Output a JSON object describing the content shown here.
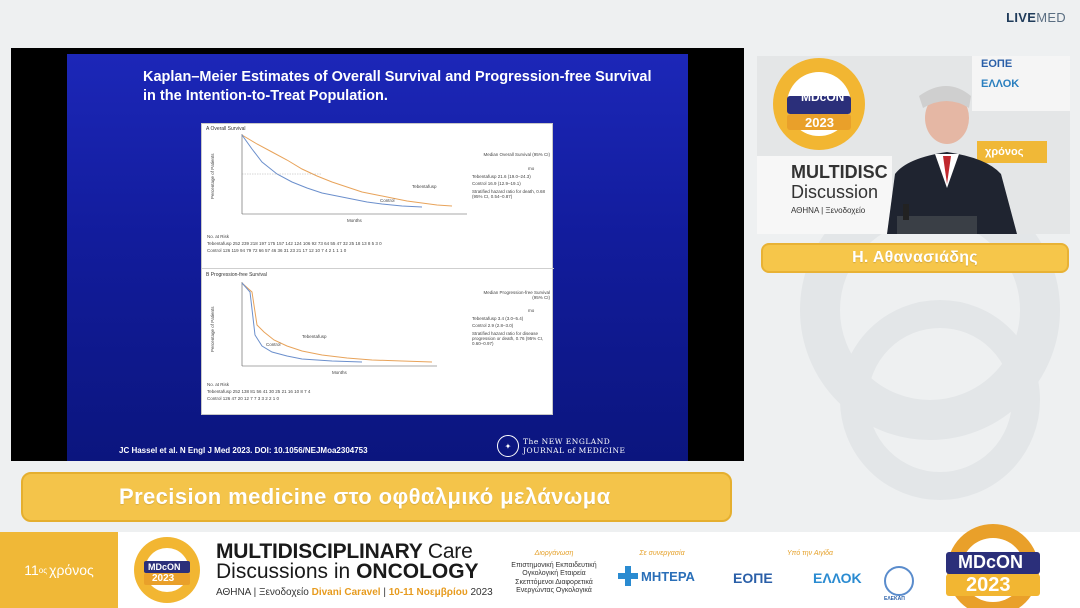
{
  "brand": {
    "live": "LIVE",
    "med": "MED"
  },
  "slide": {
    "title": "Kaplan–Meier Estimates of Overall Survival and Progression-free Survival in the Intention-to-Treat Population.",
    "citation": "JC Hassel et al. N Engl J Med 2023. DOI: 10.1056/NEJMoa2304753",
    "journal_line1": "The NEW ENGLAND",
    "journal_line2": "JOURNAL of MEDICINE",
    "panel_a": {
      "label": "A  Overall Survival",
      "ylabel": "Percentage of Patients",
      "xlabel": "Months",
      "legend_title": "Median Overall Survival (95% CI)",
      "legend_unit": "mo",
      "tebentafusp": "Tebentafusp  21.6 (19.0–24.3)",
      "control": "Control  16.9 (12.9–19.1)",
      "hazard": "Stratified hazard ratio for death, 0.68 (95% CI, 0.54–0.87)",
      "curve_label_teb": "Tebentafusp",
      "curve_label_ctl": "Control",
      "risk_header": "No. at Risk",
      "risk_teb": "Tebentafusp  252 239 218 197 175 157 142 124 106 92 73 64 55 47 32 25 18 13 8 5 3 0",
      "risk_ctl": "Control  126 119 94 79 72 66 57 46 36 31 23 21 17 12 10 7 4 2 1 1 1 0"
    },
    "panel_b": {
      "label": "B  Progression-free Survival",
      "ylabel": "Percentage of Patients",
      "xlabel": "Months",
      "legend_title": "Median Progression-free Survival (95% CI)",
      "legend_unit": "mo",
      "tebentafusp": "Tebentafusp  3.4 (3.0–5.4)",
      "control": "Control  2.9 (2.8–3.0)",
      "hazard": "Stratified hazard ratio for disease progression or death, 0.76 (95% CI, 0.60–0.97)",
      "curve_label_teb": "Tebentafusp",
      "curve_label_ctl": "Control",
      "risk_header": "No. at Risk",
      "risk_teb": "Tebentafusp  252 138 81 56 41 30 25 21 16 10 8 7 4",
      "risk_ctl": "Control  126 47 20 12 7 7 3 3 2 2 1 0"
    }
  },
  "speaker": {
    "name": "Η. Αθανασιάδης"
  },
  "topic": "Precision medicine στο οφθαλμικό μελάνωμα",
  "footer": {
    "year_ordinal": "11",
    "year_suffix": "ος",
    "year_word": "χρόνος",
    "logo_top": "MDcON",
    "logo_year": "2023",
    "title_l1_bold": "MULTIDISCIPLINARY",
    "title_l1_rest": "Care",
    "title_l2_light": "Discussions in",
    "title_l2_bold": "ONCOLOGY",
    "venue_prefix": "ΑΘΗΝΑ | Ξενοδοχείο",
    "venue_hotel": "Divani Caravel",
    "venue_dates": "10-11 Νοεμβρίου",
    "venue_year": "2023",
    "org_caption": "Διοργάνωση",
    "org_text": "Επιστημονική Εκπαιδευτική Ογκολογική Εταιρεία Σκεπτόμενοι Διαφορετικά Ενεργώντας Ογκολογικά",
    "partner_caption": "Σε συνεργασία",
    "partner_name": "ΜΗΤΕΡΑ",
    "aegis_caption": "Υπό την Αιγίδα",
    "aegis_1": "ΕΟΠΕ",
    "aegis_2": "ΕΛΛΟΚ",
    "aegis_3": "ΕΛΕΚΑΠ"
  },
  "video_banner": {
    "logo_top": "MDcON",
    "logo_year": "2023",
    "line1": "MULTIDISC",
    "line2": "Discussion",
    "line3": "ΑΘΗΝΑ | Ξενοδοχείο",
    "badge": "χρόνος",
    "org_1": "ΕΟΠΕ",
    "org_2": "ΕΛΛΟΚ"
  },
  "colors": {
    "accent": "#f4c44a",
    "slide_blue": "#1423a8",
    "tebentafusp": "#e8a35a",
    "control": "#6b8fcc"
  }
}
